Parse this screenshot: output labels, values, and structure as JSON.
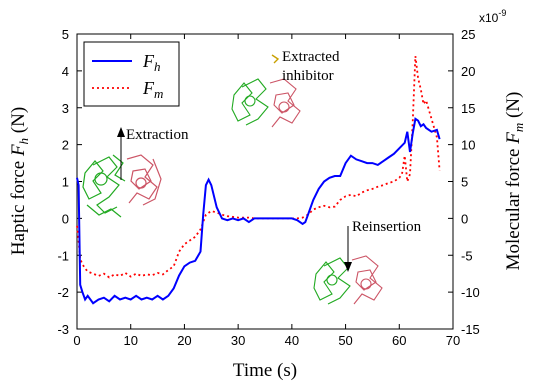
{
  "chart_data": {
    "type": "line",
    "xlabel": "Time (s)",
    "ylabel_left": "Haptic force F_h (N)",
    "ylabel_right": "Molecular force F_m (N)",
    "xlim": [
      0,
      70
    ],
    "ylim_left": [
      -3,
      5
    ],
    "ylim_right": [
      -15,
      25
    ],
    "x_ticks": [
      0,
      10,
      20,
      30,
      40,
      50,
      60,
      70
    ],
    "y_left_ticks": [
      -3,
      -2,
      -1,
      0,
      1,
      2,
      3,
      4,
      5
    ],
    "y_right_ticks": [
      -15,
      -10,
      -5,
      0,
      5,
      10,
      15,
      20,
      25
    ],
    "right_axis_multiplier": "x10",
    "right_axis_exponent": "-9",
    "legend": {
      "position": "top-left",
      "entries": [
        {
          "label": "F",
          "sub": "h",
          "color": "#0000ff",
          "style": "solid"
        },
        {
          "label": "F",
          "sub": "m",
          "color": "#ff0000",
          "style": "dotted"
        }
      ]
    },
    "annotations": {
      "extraction": "Extraction",
      "extracted_line1": "Extracted",
      "extracted_line2": "inhibitor",
      "reinsertion": "Reinsertion"
    },
    "series": [
      {
        "name": "F_h",
        "axis": "left",
        "color": "#0000ff",
        "style": "solid",
        "x": [
          0,
          0.3,
          0.6,
          1,
          1.5,
          2,
          3,
          4,
          5,
          6,
          7,
          8,
          9,
          10,
          11,
          12,
          13,
          14,
          15,
          16,
          17,
          18,
          19,
          20,
          21,
          22,
          23,
          23.5,
          24,
          24.5,
          25,
          26,
          27,
          28,
          29,
          30,
          31,
          32,
          33,
          34,
          35,
          36,
          37,
          38,
          39,
          40,
          41,
          42,
          42.5,
          43,
          44,
          45,
          46,
          47,
          48,
          49,
          50,
          51,
          52,
          53,
          54,
          55,
          56,
          57,
          58,
          59,
          60,
          61,
          61.5,
          62,
          62.5,
          63,
          63.5,
          64,
          64.5,
          65,
          66,
          67,
          67.5
        ],
        "y": [
          1.1,
          0.9,
          -1.8,
          -2.0,
          -2.2,
          -2.1,
          -2.3,
          -2.2,
          -2.15,
          -2.25,
          -2.1,
          -2.2,
          -2.15,
          -2.2,
          -2.1,
          -2.2,
          -2.15,
          -2.2,
          -2.1,
          -2.2,
          -2.1,
          -1.9,
          -1.55,
          -1.3,
          -1.2,
          -1.15,
          -0.9,
          0.1,
          0.9,
          1.05,
          0.9,
          0.3,
          0.0,
          -0.05,
          0.0,
          -0.05,
          0.0,
          -0.1,
          0.0,
          0.0,
          0.0,
          0.0,
          0.0,
          0.0,
          0.0,
          0.0,
          -0.05,
          -0.15,
          -0.1,
          0.1,
          0.5,
          0.8,
          1.0,
          1.1,
          1.15,
          1.15,
          1.5,
          1.7,
          1.6,
          1.55,
          1.5,
          1.5,
          1.45,
          1.55,
          1.65,
          1.75,
          1.9,
          2.05,
          2.35,
          1.8,
          2.3,
          2.7,
          2.65,
          2.5,
          2.55,
          2.45,
          2.35,
          2.4,
          2.15
        ]
      },
      {
        "name": "F_m",
        "axis": "right",
        "color": "#ff0000",
        "style": "dotted",
        "x": [
          0,
          0.3,
          0.6,
          1,
          1.5,
          2,
          3,
          4,
          5,
          6,
          7,
          8,
          9,
          10,
          11,
          12,
          13,
          14,
          15,
          16,
          17,
          18,
          19,
          20,
          21,
          22,
          23,
          24,
          25,
          26,
          27,
          28,
          29,
          30,
          31,
          32,
          33,
          34,
          35,
          36,
          37,
          38,
          39,
          40,
          41,
          42,
          43,
          44,
          45,
          46,
          47,
          48,
          49,
          50,
          51,
          52,
          53,
          54,
          55,
          56,
          57,
          58,
          59,
          60,
          60.5,
          61,
          61.5,
          62,
          62.5,
          63,
          63.5,
          64,
          64.5,
          65,
          66,
          67,
          67.5
        ],
        "y": [
          -1,
          -3,
          -5.5,
          -6.2,
          -6.8,
          -7.2,
          -7.5,
          -7.8,
          -7.5,
          -8.0,
          -7.6,
          -7.8,
          -7.4,
          -7.9,
          -7.5,
          -7.8,
          -7.6,
          -7.7,
          -7.4,
          -7.6,
          -7.0,
          -6.5,
          -4.5,
          -3.5,
          -3.0,
          -2.5,
          -1.5,
          0.5,
          1.0,
          0.8,
          0.5,
          0.3,
          0.2,
          0.1,
          0.1,
          0.1,
          0.0,
          0.0,
          0.0,
          0.0,
          0.0,
          0.0,
          0.0,
          0.0,
          0.0,
          0.1,
          0.5,
          1.2,
          1.5,
          1.7,
          1.5,
          1.6,
          2.5,
          3.0,
          3.2,
          3.0,
          3.5,
          3.8,
          4.0,
          4.3,
          4.5,
          4.8,
          5.0,
          5.5,
          6.0,
          8.5,
          5.0,
          6.0,
          13.0,
          22.0,
          19.0,
          17.5,
          15.5,
          16.0,
          13.5,
          11.0,
          6.5
        ]
      }
    ]
  }
}
